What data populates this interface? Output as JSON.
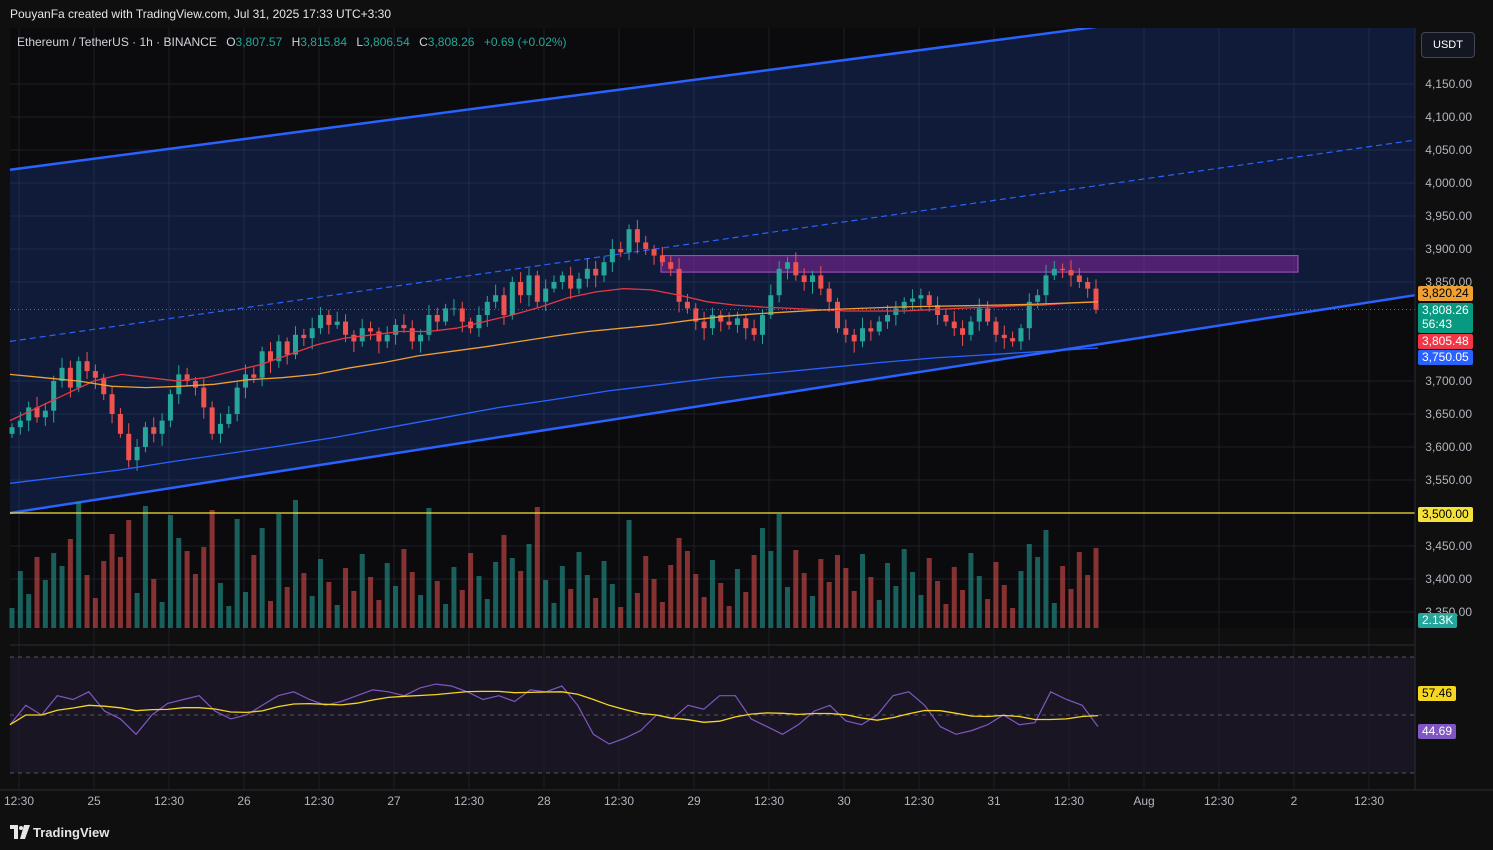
{
  "header": {
    "attribution": "PouyanFa created with TradingView.com, Jul 31, 2025 17:33 UTC+3:30"
  },
  "legend": {
    "symbol": "Ethereum / TetherUS · 1h · BINANCE",
    "o_label": "O",
    "o_value": "3,807.57",
    "h_label": "H",
    "h_value": "3,815.84",
    "l_label": "L",
    "l_value": "3,806.54",
    "c_label": "C",
    "c_value": "3,808.26",
    "change": "+0.69 (+0.02%)"
  },
  "currency": "USDT",
  "footer": {
    "brand": "TradingView"
  },
  "colors": {
    "up": "#26a69a",
    "down": "#ef5350",
    "channel": "#2962ff",
    "ma_red": "#e53945",
    "ma_orange": "#f0a030",
    "ma_blue": "#2962ff",
    "rsi": "#7e57c2",
    "rsi_ma": "#f5d623",
    "horizontal": "#f5e13b",
    "zone": "#9c27b0"
  },
  "chart_data": {
    "type": "candlestick",
    "symbol": "ETHUSDT",
    "interval": "1h",
    "ylim": [
      3325,
      4200
    ],
    "y_ticks": [
      "4,150.00",
      "4,100.00",
      "4,050.00",
      "4,000.00",
      "3,950.00",
      "3,900.00",
      "3,850.00",
      "3,700.00",
      "3,650.00",
      "3,600.00",
      "3,550.00",
      "3,450.00",
      "3,400.00",
      "3,350.00"
    ],
    "x_ticks": [
      "12:30",
      "25",
      "12:30",
      "26",
      "12:30",
      "27",
      "12:30",
      "28",
      "12:30",
      "29",
      "12:30",
      "30",
      "12:30",
      "31",
      "12:30",
      "Aug",
      "12:30",
      "2",
      "12:30"
    ],
    "closes": [
      3630,
      3640,
      3660,
      3645,
      3655,
      3700,
      3720,
      3690,
      3730,
      3715,
      3705,
      3680,
      3650,
      3620,
      3580,
      3600,
      3630,
      3620,
      3640,
      3680,
      3710,
      3700,
      3690,
      3660,
      3620,
      3635,
      3650,
      3690,
      3710,
      3705,
      3745,
      3730,
      3760,
      3740,
      3770,
      3765,
      3780,
      3800,
      3785,
      3790,
      3770,
      3760,
      3780,
      3775,
      3760,
      3770,
      3785,
      3780,
      3760,
      3770,
      3800,
      3790,
      3810,
      3810,
      3790,
      3780,
      3800,
      3820,
      3830,
      3800,
      3850,
      3830,
      3860,
      3820,
      3840,
      3850,
      3860,
      3840,
      3855,
      3870,
      3860,
      3880,
      3900,
      3895,
      3930,
      3910,
      3900,
      3890,
      3880,
      3870,
      3820,
      3810,
      3790,
      3780,
      3800,
      3790,
      3785,
      3795,
      3780,
      3770,
      3800,
      3830,
      3870,
      3880,
      3860,
      3850,
      3860,
      3840,
      3820,
      3780,
      3770,
      3760,
      3780,
      3775,
      3790,
      3800,
      3810,
      3820,
      3825,
      3830,
      3815,
      3800,
      3790,
      3780,
      3770,
      3790,
      3810,
      3790,
      3770,
      3765,
      3760,
      3780,
      3820,
      3830,
      3860,
      3870,
      3868,
      3860,
      3850,
      3840,
      3808
    ],
    "ma_fast": [
      3640,
      3660,
      3680,
      3700,
      3710,
      3705,
      3700,
      3705,
      3715,
      3725,
      3740,
      3755,
      3765,
      3770,
      3775,
      3775,
      3780,
      3790,
      3800,
      3812,
      3826,
      3835,
      3840,
      3838,
      3830,
      3820,
      3815,
      3812,
      3810,
      3808,
      3806,
      3806,
      3806,
      3808,
      3810,
      3812,
      3814,
      3815,
      3818,
      3820
    ],
    "ma_slow": [
      3710,
      3705,
      3700,
      3692,
      3690,
      3692,
      3695,
      3702,
      3705,
      3710,
      3720,
      3728,
      3738,
      3745,
      3752,
      3760,
      3768,
      3775,
      3780,
      3785,
      3792,
      3798,
      3802,
      3805,
      3808,
      3810,
      3812,
      3813,
      3814,
      3815,
      3816,
      3818,
      3820
    ],
    "ma_long": [
      3545,
      3555,
      3565,
      3578,
      3590,
      3602,
      3615,
      3630,
      3645,
      3660,
      3672,
      3685,
      3695,
      3705,
      3712,
      3720,
      3728,
      3735,
      3740,
      3745,
      3750
    ],
    "channel": {
      "lower_start": 3500,
      "lower_end": 3830,
      "upper_start": 4020,
      "upper_end": 4300
    },
    "resistance_zone": [
      3865,
      3890
    ],
    "horizontal_level": 3500.0,
    "price_labels": {
      "ma_orange": "3,820.24",
      "last": "3,808.26",
      "countdown": "56:43",
      "ma_red": "3,805.48",
      "ma_blue": "3,750.05",
      "line": "3,500.00",
      "volume": "2.13K"
    },
    "rsi": {
      "ticks": [
        "60.00",
        "40.00"
      ],
      "last": "44.69",
      "ma_last": "57.46",
      "values": [
        45,
        55,
        50,
        60,
        58,
        62,
        52,
        48,
        40,
        50,
        56,
        58,
        60,
        52,
        48,
        50,
        55,
        60,
        62,
        58,
        55,
        57,
        60,
        63,
        62,
        60,
        64,
        66,
        65,
        62,
        58,
        60,
        57,
        63,
        62,
        65,
        55,
        40,
        35,
        38,
        42,
        50,
        48,
        55,
        53,
        60,
        60,
        48,
        44,
        40,
        45,
        52,
        55,
        47,
        45,
        50,
        60,
        62,
        55,
        44,
        40,
        42,
        45,
        50,
        45,
        46,
        62,
        58,
        55,
        44
      ]
    }
  }
}
